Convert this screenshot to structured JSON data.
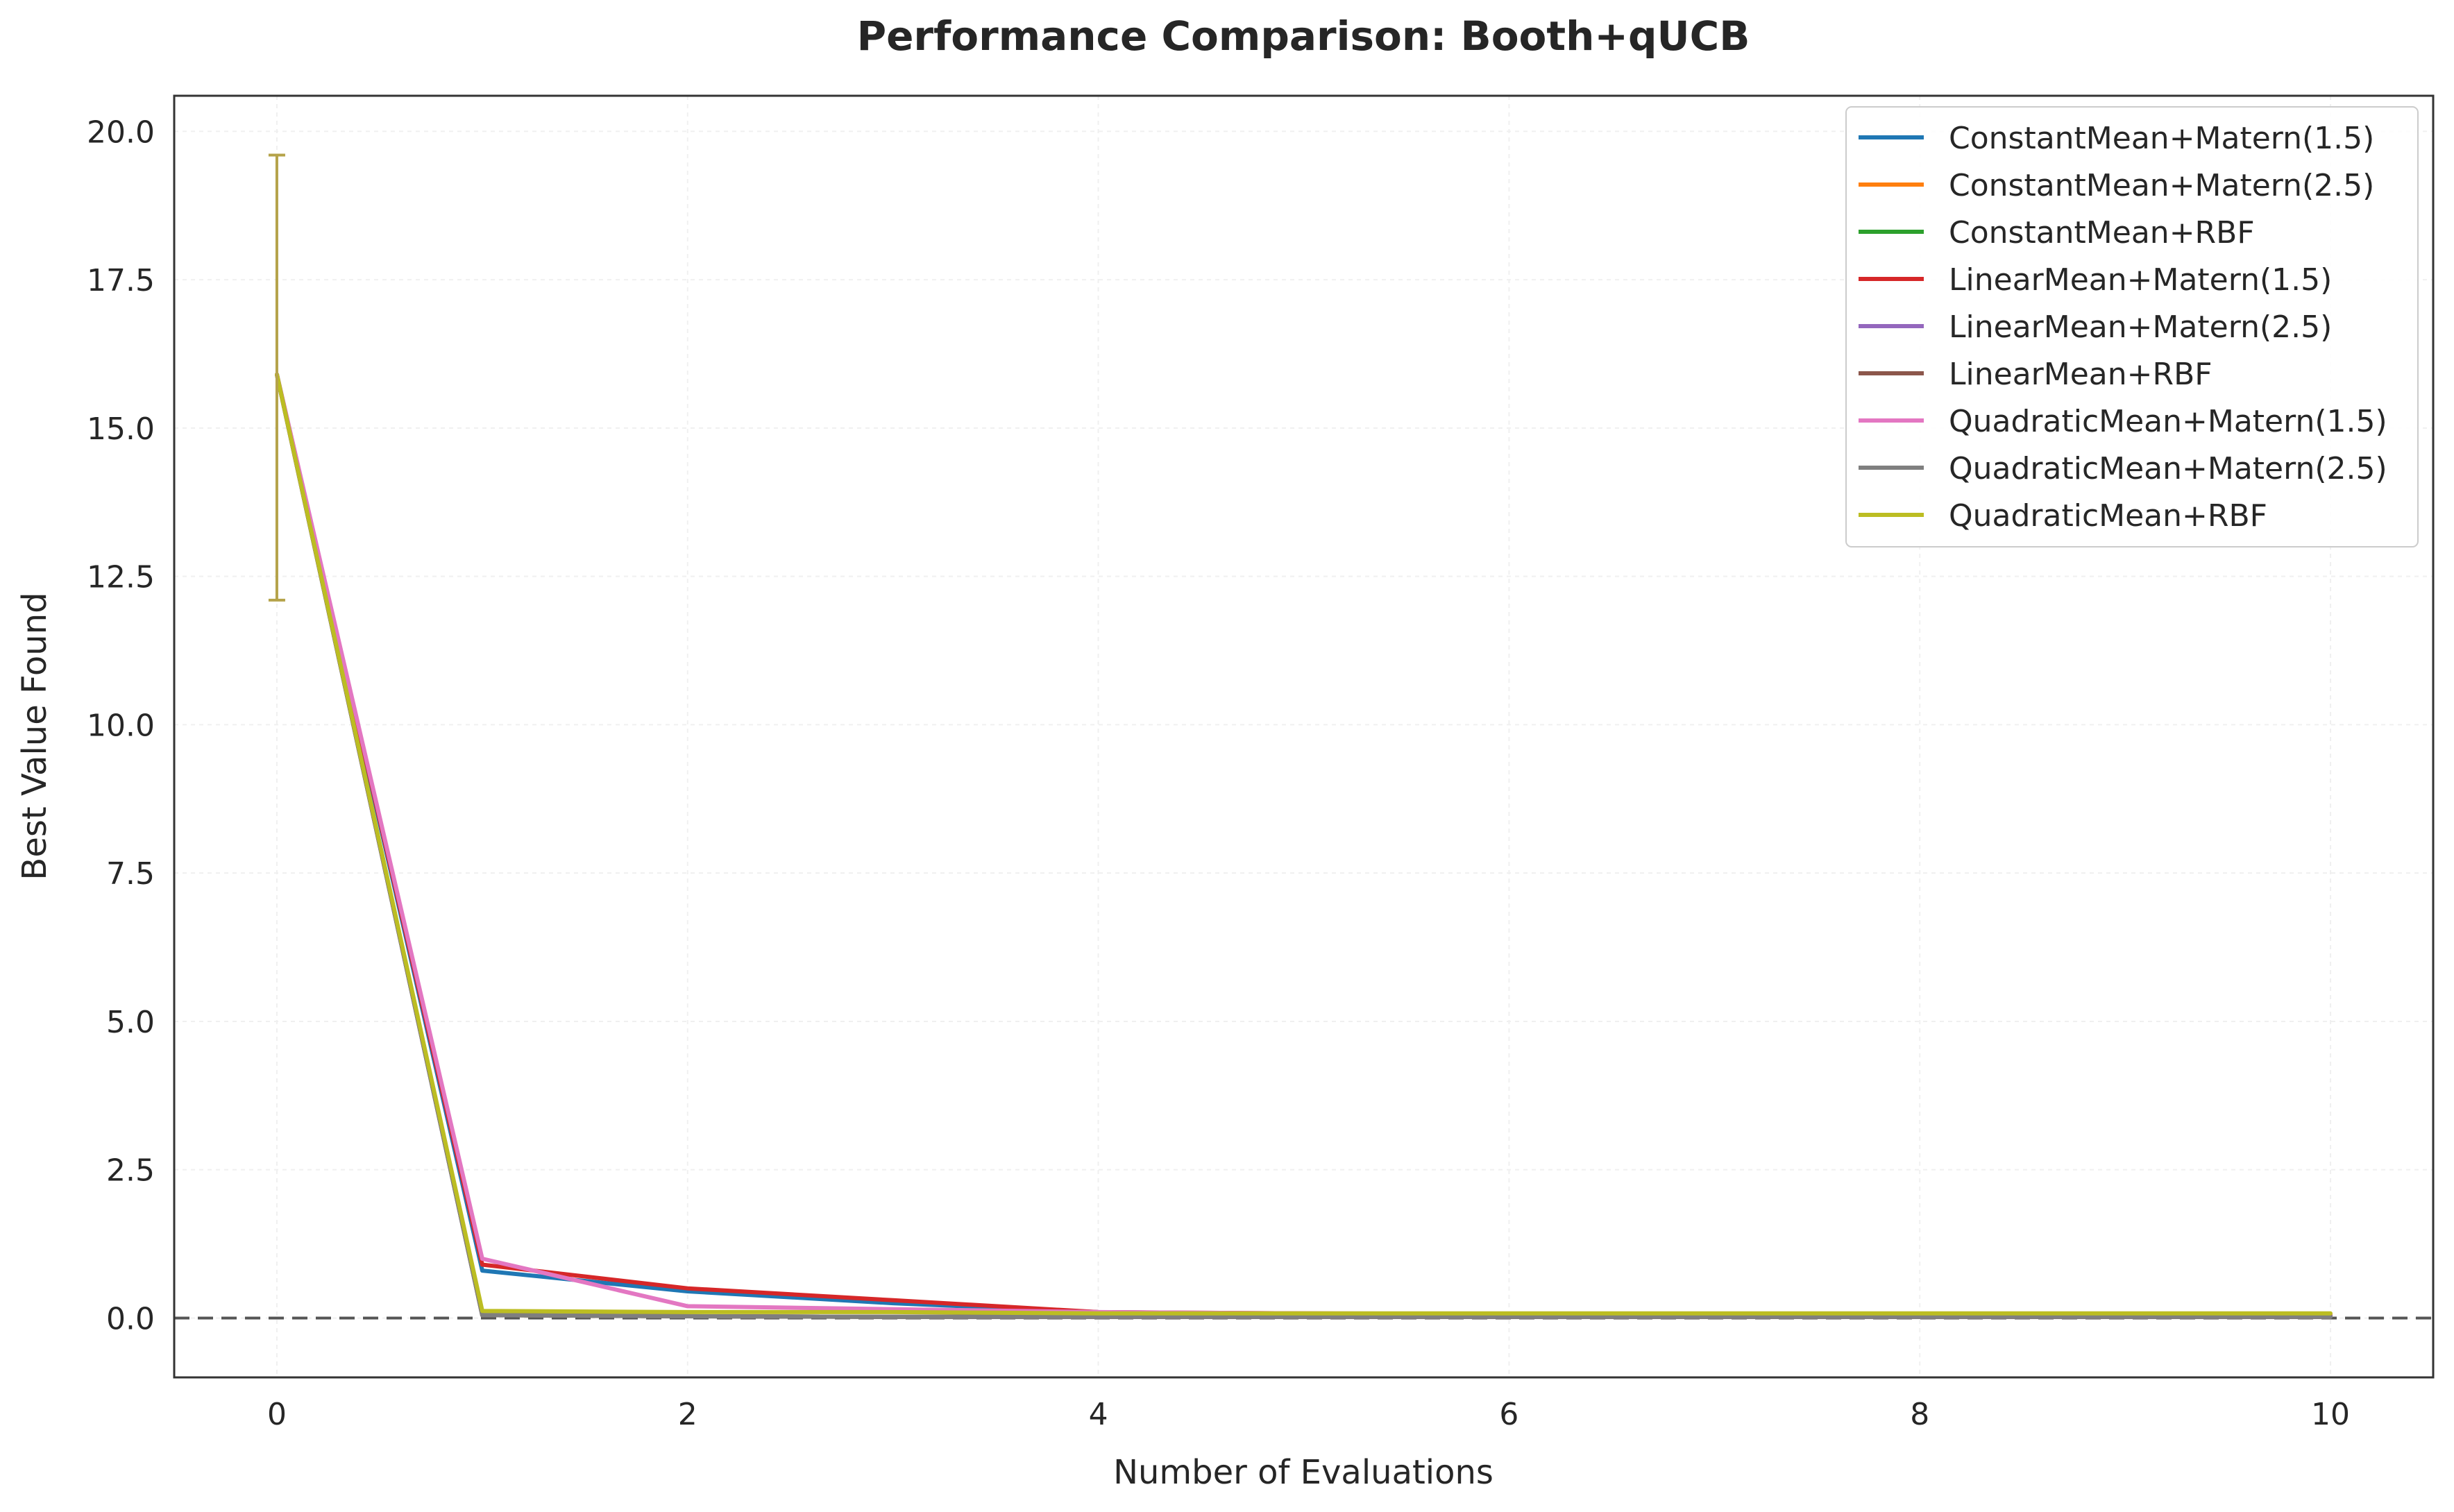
{
  "chart_data": {
    "type": "line",
    "title": "Performance Comparison: Booth+qUCB",
    "xlabel": "Number of Evaluations",
    "ylabel": "Best Value Found",
    "xlim": [
      -0.5,
      10.5
    ],
    "ylim": [
      -1.0,
      20.6
    ],
    "x_ticks": [
      "0",
      "2",
      "4",
      "6",
      "8",
      "10"
    ],
    "y_ticks": [
      "0.0",
      "2.5",
      "5.0",
      "7.5",
      "10.0",
      "12.5",
      "15.0",
      "17.5",
      "20.0"
    ],
    "grid": true,
    "legend_position": "top-right",
    "reference_line": {
      "y": 0.0,
      "style": "dashed",
      "color": "#555555"
    },
    "x": [
      0,
      1,
      2,
      3,
      4,
      5,
      6,
      7,
      8,
      9,
      10
    ],
    "error_bar": {
      "x": 0,
      "low": 12.1,
      "high": 19.6,
      "color": "#b5a34a"
    },
    "series": [
      {
        "name": "ConstantMean+Matern(1.5)",
        "color": "#1f77b4",
        "values": [
          15.9,
          0.8,
          0.45,
          0.25,
          0.1,
          0.07,
          0.05,
          0.05,
          0.05,
          0.05,
          0.05
        ]
      },
      {
        "name": "ConstantMean+Matern(2.5)",
        "color": "#ff7f0e",
        "values": [
          15.9,
          0.05,
          0.03,
          0.02,
          0.02,
          0.02,
          0.02,
          0.02,
          0.02,
          0.02,
          0.02
        ]
      },
      {
        "name": "ConstantMean+RBF",
        "color": "#2ca02c",
        "values": [
          15.9,
          0.05,
          0.03,
          0.02,
          0.02,
          0.02,
          0.02,
          0.02,
          0.02,
          0.02,
          0.02
        ]
      },
      {
        "name": "LinearMean+Matern(1.5)",
        "color": "#d62728",
        "values": [
          15.9,
          0.9,
          0.5,
          0.3,
          0.1,
          0.08,
          0.06,
          0.06,
          0.06,
          0.06,
          0.06
        ]
      },
      {
        "name": "LinearMean+Matern(2.5)",
        "color": "#9467bd",
        "values": [
          15.9,
          0.05,
          0.03,
          0.02,
          0.02,
          0.02,
          0.02,
          0.02,
          0.02,
          0.02,
          0.02
        ]
      },
      {
        "name": "LinearMean+RBF",
        "color": "#8c564b",
        "values": [
          15.9,
          0.05,
          0.03,
          0.02,
          0.02,
          0.02,
          0.02,
          0.02,
          0.02,
          0.02,
          0.02
        ]
      },
      {
        "name": "QuadraticMean+Matern(1.5)",
        "color": "#e377c2",
        "values": [
          15.9,
          1.0,
          0.2,
          0.15,
          0.1,
          0.08,
          0.07,
          0.07,
          0.07,
          0.07,
          0.07
        ]
      },
      {
        "name": "QuadraticMean+Matern(2.5)",
        "color": "#7f7f7f",
        "values": [
          15.9,
          0.05,
          0.03,
          0.02,
          0.02,
          0.02,
          0.02,
          0.02,
          0.02,
          0.02,
          0.02
        ]
      },
      {
        "name": "QuadraticMean+RBF",
        "color": "#bcbd22",
        "values": [
          15.9,
          0.12,
          0.1,
          0.1,
          0.08,
          0.08,
          0.08,
          0.08,
          0.08,
          0.08,
          0.08
        ]
      }
    ]
  }
}
